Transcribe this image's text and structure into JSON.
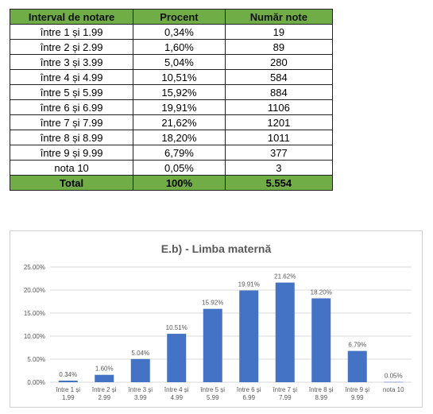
{
  "table": {
    "headers": [
      "Interval de notare",
      "Procent",
      "Număr note"
    ],
    "rows": [
      [
        "între 1 și 1.99",
        "0,34%",
        "19"
      ],
      [
        "între 2 și 2.99",
        "1,60%",
        "89"
      ],
      [
        "între 3 și 3.99",
        "5,04%",
        "280"
      ],
      [
        "între 4 și 4.99",
        "10,51%",
        "584"
      ],
      [
        "între 5 și 5.99",
        "15,92%",
        "884"
      ],
      [
        "între 6 și 6.99",
        "19,91%",
        "1106"
      ],
      [
        "între 7 și 7.99",
        "21,62%",
        "1201"
      ],
      [
        "între 8 și 8.99",
        "18,20%",
        "1011"
      ],
      [
        "între 9 și 9.99",
        "6,79%",
        "377"
      ],
      [
        "nota 10",
        "0,05%",
        "3"
      ]
    ],
    "total": [
      "Total",
      "100%",
      "5.554"
    ]
  },
  "chart_data": {
    "type": "bar",
    "title": "E.b) - Limba maternă",
    "categories": [
      [
        "între 1 și",
        "1.99"
      ],
      [
        "între 2 și",
        "2.99"
      ],
      [
        "între 3 și",
        "3.99"
      ],
      [
        "între 4 și",
        "4.99"
      ],
      [
        "între 5 și",
        "5.99"
      ],
      [
        "între 6 și",
        "6.99"
      ],
      [
        "între 7 și",
        "7.99"
      ],
      [
        "între 8 și",
        "8.99"
      ],
      [
        "între 9 și",
        "9.99"
      ],
      [
        "nota 10"
      ]
    ],
    "values": [
      0.34,
      1.6,
      5.04,
      10.51,
      15.92,
      19.91,
      21.62,
      18.2,
      6.79,
      0.05
    ],
    "data_labels": [
      "0.34%",
      "1.60%",
      "5.04%",
      "10.51%",
      "15.92%",
      "19.91%",
      "21.62%",
      "18.20%",
      "6.79%",
      "0.05%"
    ],
    "yticks": [
      "0.00%",
      "5.00%",
      "10.00%",
      "15.00%",
      "20.00%",
      "25.00%"
    ],
    "ylim": [
      0,
      25
    ],
    "grid": true,
    "bar_color": "#4472c4"
  }
}
